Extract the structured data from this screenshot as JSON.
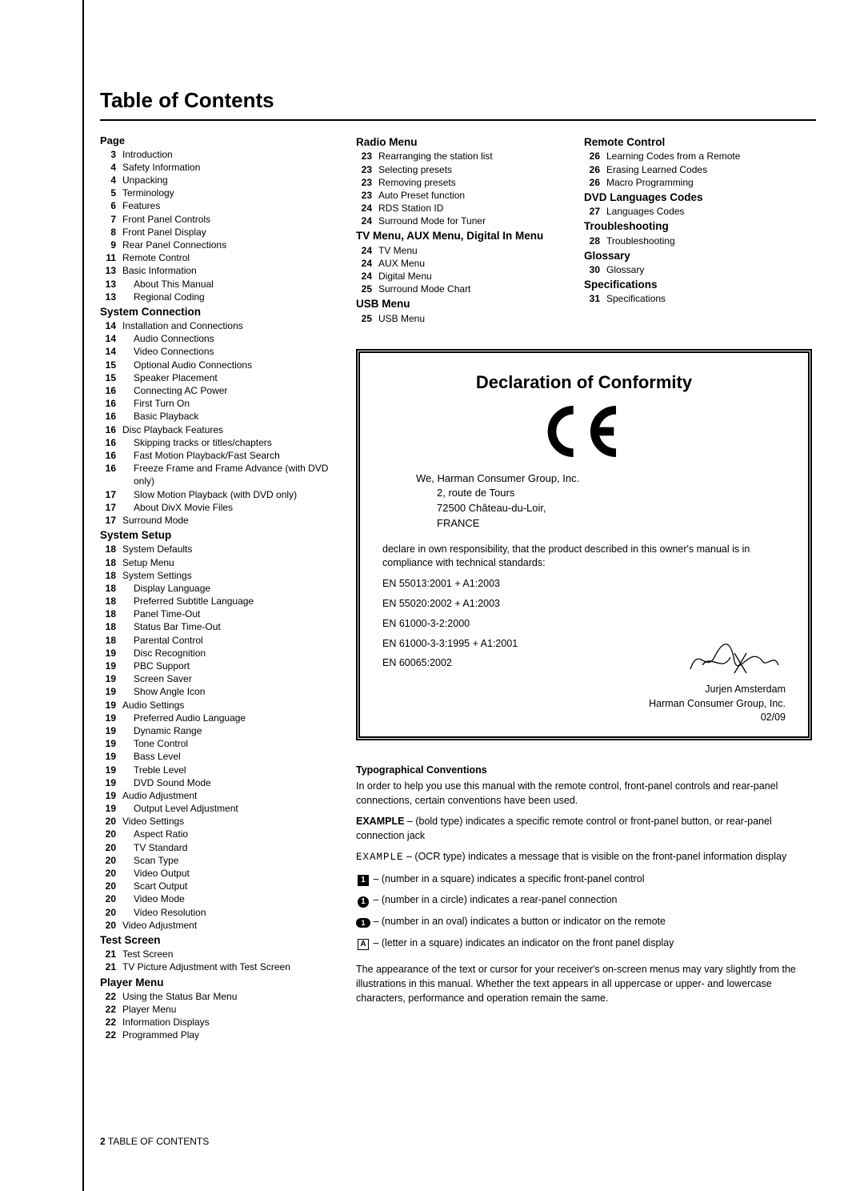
{
  "title": "Table of Contents",
  "page_heading": "Page",
  "col1": {
    "sections": [
      {
        "heading": null,
        "items": [
          {
            "p": "3",
            "t": "Introduction",
            "i": 0
          },
          {
            "p": "4",
            "t": "Safety Information",
            "i": 0
          },
          {
            "p": "4",
            "t": "Unpacking",
            "i": 0
          },
          {
            "p": "5",
            "t": "Terminology",
            "i": 0
          },
          {
            "p": "6",
            "t": "Features",
            "i": 0
          },
          {
            "p": "7",
            "t": "Front Panel Controls",
            "i": 0
          },
          {
            "p": "8",
            "t": "Front Panel Display",
            "i": 0
          },
          {
            "p": "9",
            "t": "Rear Panel Connections",
            "i": 0
          },
          {
            "p": "11",
            "t": "Remote Control",
            "i": 0
          },
          {
            "p": "13",
            "t": "Basic Information",
            "i": 0
          },
          {
            "p": "13",
            "t": "About This Manual",
            "i": 1
          },
          {
            "p": "13",
            "t": "Regional Coding",
            "i": 1
          }
        ]
      },
      {
        "heading": "System Connection",
        "items": [
          {
            "p": "14",
            "t": "Installation and Connections",
            "i": 0
          },
          {
            "p": "14",
            "t": "Audio Connections",
            "i": 1
          },
          {
            "p": "14",
            "t": "Video Connections",
            "i": 1
          },
          {
            "p": "15",
            "t": "Optional Audio Connections",
            "i": 1
          },
          {
            "p": "15",
            "t": "Speaker Placement",
            "i": 1
          },
          {
            "p": "16",
            "t": "Connecting AC Power",
            "i": 1
          },
          {
            "p": "16",
            "t": "First Turn On",
            "i": 1
          },
          {
            "p": "16",
            "t": "Basic Playback",
            "i": 1
          },
          {
            "p": "16",
            "t": "Disc Playback Features",
            "i": 0
          },
          {
            "p": "16",
            "t": "Skipping tracks or titles/chapters",
            "i": 1
          },
          {
            "p": "16",
            "t": "Fast Motion Playback/Fast Search",
            "i": 1
          },
          {
            "p": "16",
            "t": "Freeze Frame and Frame Advance (with DVD only)",
            "i": 1
          },
          {
            "p": "17",
            "t": "Slow Motion Playback (with DVD only)",
            "i": 1
          },
          {
            "p": "17",
            "t": "About DivX Movie Files",
            "i": 1
          },
          {
            "p": "17",
            "t": "Surround Mode",
            "i": 0
          }
        ]
      },
      {
        "heading": "System Setup",
        "items": [
          {
            "p": "18",
            "t": "System Defaults",
            "i": 0
          },
          {
            "p": "18",
            "t": "Setup Menu",
            "i": 0
          },
          {
            "p": "18",
            "t": "System Settings",
            "i": 0
          },
          {
            "p": "18",
            "t": "Display Language",
            "i": 1
          },
          {
            "p": "18",
            "t": "Preferred Subtitle Language",
            "i": 1
          },
          {
            "p": "18",
            "t": "Panel Time-Out",
            "i": 1
          },
          {
            "p": "18",
            "t": "Status Bar Time-Out",
            "i": 1
          },
          {
            "p": "18",
            "t": "Parental Control",
            "i": 1
          },
          {
            "p": "19",
            "t": "Disc Recognition",
            "i": 1
          },
          {
            "p": "19",
            "t": "PBC Support",
            "i": 1
          },
          {
            "p": "19",
            "t": "Screen Saver",
            "i": 1
          },
          {
            "p": "19",
            "t": "Show Angle Icon",
            "i": 1
          },
          {
            "p": "19",
            "t": "Audio Settings",
            "i": 0
          },
          {
            "p": "19",
            "t": "Preferred Audio Language",
            "i": 1
          },
          {
            "p": "19",
            "t": "Dynamic Range",
            "i": 1
          },
          {
            "p": "19",
            "t": "Tone Control",
            "i": 1
          },
          {
            "p": "19",
            "t": "Bass Level",
            "i": 1
          },
          {
            "p": "19",
            "t": "Treble Level",
            "i": 1
          },
          {
            "p": "19",
            "t": "DVD Sound Mode",
            "i": 1
          },
          {
            "p": "19",
            "t": "Audio Adjustment",
            "i": 0
          },
          {
            "p": "19",
            "t": "Output Level Adjustment",
            "i": 1
          },
          {
            "p": "20",
            "t": "Video Settings",
            "i": 0
          },
          {
            "p": "20",
            "t": "Aspect Ratio",
            "i": 1
          },
          {
            "p": "20",
            "t": "TV Standard",
            "i": 1
          },
          {
            "p": "20",
            "t": "Scan Type",
            "i": 1
          },
          {
            "p": "20",
            "t": "Video Output",
            "i": 1
          },
          {
            "p": "20",
            "t": "Scart Output",
            "i": 1
          },
          {
            "p": "20",
            "t": "Video Mode",
            "i": 1
          },
          {
            "p": "20",
            "t": "Video Resolution",
            "i": 1
          },
          {
            "p": "20",
            "t": "Video Adjustment",
            "i": 0
          }
        ]
      },
      {
        "heading": "Test Screen",
        "items": [
          {
            "p": "21",
            "t": "Test Screen",
            "i": 0
          },
          {
            "p": "21",
            "t": "TV Picture Adjustment with Test Screen",
            "i": 0
          }
        ]
      },
      {
        "heading": "Player Menu",
        "items": [
          {
            "p": "22",
            "t": "Using the Status Bar Menu",
            "i": 0
          },
          {
            "p": "22",
            "t": "Player Menu",
            "i": 0
          },
          {
            "p": "22",
            "t": "Information Displays",
            "i": 0
          },
          {
            "p": "22",
            "t": "Programmed Play",
            "i": 0
          }
        ]
      }
    ]
  },
  "col2": {
    "sections": [
      {
        "heading": "Radio Menu",
        "items": [
          {
            "p": "23",
            "t": "Rearranging the station list",
            "i": 0
          },
          {
            "p": "23",
            "t": "Selecting presets",
            "i": 0
          },
          {
            "p": "23",
            "t": "Removing presets",
            "i": 0
          },
          {
            "p": "23",
            "t": "Auto Preset function",
            "i": 0
          },
          {
            "p": "24",
            "t": "RDS Station ID",
            "i": 0
          },
          {
            "p": "24",
            "t": "Surround Mode for Tuner",
            "i": 0
          }
        ]
      },
      {
        "heading": "TV Menu, AUX Menu, Digital In Menu",
        "items": [
          {
            "p": "24",
            "t": "TV Menu",
            "i": 0
          },
          {
            "p": "24",
            "t": "AUX Menu",
            "i": 0
          },
          {
            "p": "24",
            "t": "Digital Menu",
            "i": 0
          },
          {
            "p": "25",
            "t": "Surround Mode Chart",
            "i": 0
          }
        ]
      },
      {
        "heading": "USB Menu",
        "items": [
          {
            "p": "25",
            "t": "USB Menu",
            "i": 0
          }
        ]
      }
    ]
  },
  "col3": {
    "sections": [
      {
        "heading": "Remote Control",
        "items": [
          {
            "p": "26",
            "t": "Learning Codes from a Remote",
            "i": 0
          },
          {
            "p": "26",
            "t": "Erasing Learned Codes",
            "i": 0
          },
          {
            "p": "26",
            "t": "Macro Programming",
            "i": 0
          }
        ]
      },
      {
        "heading": "DVD Languages Codes",
        "items": [
          {
            "p": "27",
            "t": "Languages Codes",
            "i": 0
          }
        ]
      },
      {
        "heading": "Troubleshooting",
        "items": [
          {
            "p": "28",
            "t": "Troubleshooting",
            "i": 0
          }
        ]
      },
      {
        "heading": "Glossary",
        "items": [
          {
            "p": "30",
            "t": "Glossary",
            "i": 0
          }
        ]
      },
      {
        "heading": "Specifications",
        "items": [
          {
            "p": "31",
            "t": "Specifications",
            "i": 0
          }
        ]
      }
    ]
  },
  "declaration": {
    "title": "Declaration of Conformity",
    "we_line": "We, Harman Consumer Group, Inc.",
    "addr1": "2, route de Tours",
    "addr2": "72500 Château-du-Loir,",
    "addr3": "FRANCE",
    "para": "declare in own responsibility, that the product described in this owner's manual is in compliance with technical standards:",
    "standards": [
      "EN 55013:2001 + A1:2003",
      "EN 55020:2002 + A1:2003",
      "EN 61000-3-2:2000",
      "EN 61000-3-3:1995 + A1:2001",
      "EN 60065:2002"
    ],
    "sign_name": "Jurjen Amsterdam",
    "sign_org": "Harman Consumer Group, Inc.",
    "sign_date": "02/09"
  },
  "conventions": {
    "heading": "Typographical Conventions",
    "intro": "In order to help you use this manual with the remote control, front-panel controls and rear-panel connections, certain conventions have been used.",
    "example_bold_label": "EXAMPLE",
    "example_bold_text": " – (bold type) indicates a specific remote control or front-panel button, or rear-panel connection jack",
    "example_ocr_label": "EXAMPLE",
    "example_ocr_text": " – (OCR type) indicates a message that is visible on the front-panel information display",
    "sq_text": " –   (number in a square) indicates a specific front-panel control",
    "circ_text": " –   (number in a circle) indicates a rear-panel connection",
    "oval_text": " – (number in an oval) indicates a button or indicator on the remote",
    "let_text": " –   (letter in a square) indicates an indicator on the front panel display",
    "closing": "The appearance of the text or cursor for your receiver's on-screen menus may vary slightly from the illustrations in this manual. Whether the text appears in all uppercase or upper- and lowercase characters, performance and operation remain the same."
  },
  "footer": {
    "num": "2",
    "label": " TABLE OF CONTENTS"
  }
}
